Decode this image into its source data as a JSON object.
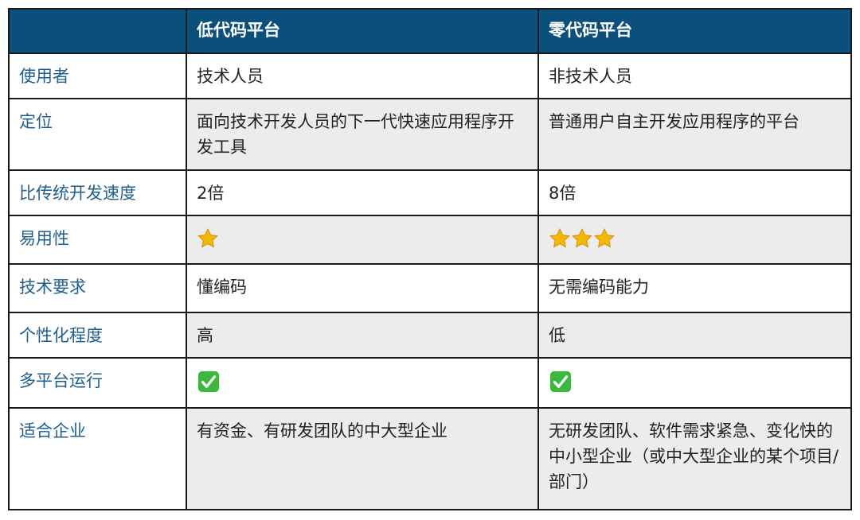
{
  "header": {
    "col0": "",
    "col1": "低代码平台",
    "col2": "零代码平台"
  },
  "rows": [
    {
      "label": "使用者",
      "low": "技术人员",
      "zero": "非技术人员"
    },
    {
      "label": "定位",
      "low": "面向技术开发人员的下一代快速应用程序开发工具",
      "zero": "普通用户自主开发应用程序的平台"
    },
    {
      "label": "比传统开发速度",
      "low": "2倍",
      "zero": "8倍"
    },
    {
      "label": "易用性",
      "low_stars": 1,
      "zero_stars": 3,
      "icon": "star-icon"
    },
    {
      "label": "技术要求",
      "low": "懂编码",
      "zero": "无需编码能力"
    },
    {
      "label": "个性化程度",
      "low": "高",
      "zero": "低"
    },
    {
      "label": "多平台运行",
      "low_check": true,
      "zero_check": true,
      "icon": "check-mark-button-icon"
    },
    {
      "label": "适合企业",
      "low": "有资金、有研发团队的中大型企业",
      "zero": "无研发团队、软件需求紧急、变化快的中小型企业（或中大型企业的某个项目/部门）"
    }
  ],
  "colors": {
    "header_bg": "#0b4f7c",
    "label_text": "#1f5f8f",
    "alt_row_bg": "#ececec",
    "star": "#f5b800",
    "check": "#3cb83c"
  }
}
